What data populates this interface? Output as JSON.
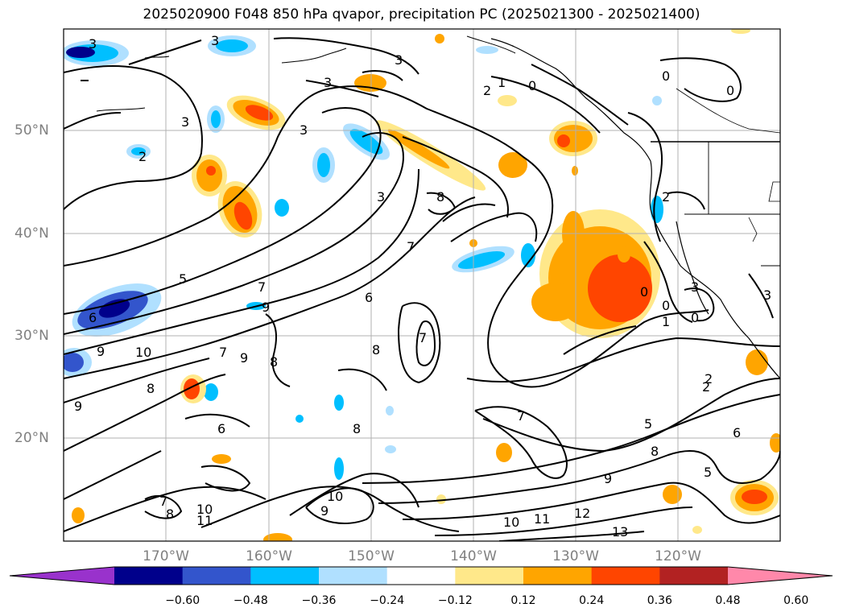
{
  "title": "2025020900 F048 850 hPa qvapor, precipitation PC (2025021300 - 2025021400)",
  "lat_labels": [
    "50°N",
    "40°N",
    "30°N",
    "20°N"
  ],
  "lon_labels": [
    "170°W",
    "160°W",
    "150°W",
    "140°W",
    "130°W",
    "120°W"
  ],
  "colorbar": {
    "colors": [
      "#9932cc",
      "#00008b",
      "#3355cc",
      "#00bfff",
      "#b0e0ff",
      "#ffffff",
      "#ffe88a",
      "#ffa500",
      "#ff4500",
      "#b22222",
      "#ff88aa"
    ],
    "tick_labels": [
      "−0.60",
      "−0.48",
      "−0.36",
      "−0.24",
      "−0.12",
      "0.12",
      "0.24",
      "0.36",
      "0.48",
      "0.60"
    ],
    "ticks": [
      -0.6,
      -0.48,
      -0.36,
      -0.24,
      -0.12,
      0.12,
      0.24,
      0.36,
      0.48,
      0.6
    ]
  },
  "contour_labels": [
    "3",
    "3",
    "3",
    "3",
    "3",
    "3",
    "3",
    "2",
    "2",
    "1",
    "0",
    "0",
    "0",
    "2",
    "8",
    "7",
    "5",
    "7",
    "9",
    "6",
    "6",
    "9",
    "10",
    "7",
    "9",
    "8",
    "8",
    "8",
    "7",
    "6",
    "8",
    "7",
    "2",
    "5",
    "6",
    "5",
    "8",
    "9",
    "10",
    "9",
    "7",
    "8",
    "10",
    "11",
    "10",
    "11",
    "12",
    "13",
    "0",
    "0",
    "1",
    "0",
    "3",
    "3",
    "2",
    "9"
  ]
}
